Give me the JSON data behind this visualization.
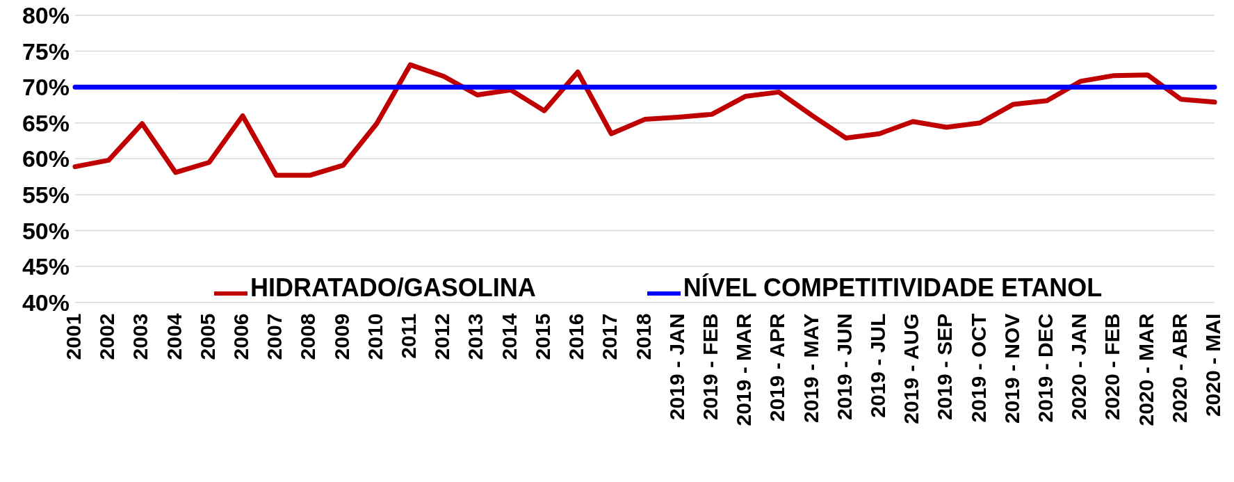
{
  "chart_data": {
    "type": "line",
    "categories": [
      "2001",
      "2002",
      "2003",
      "2004",
      "2005",
      "2006",
      "2007",
      "2008",
      "2009",
      "2010",
      "2011",
      "2012",
      "2013",
      "2014",
      "2015",
      "2016",
      "2017",
      "2018",
      "2019 - JAN",
      "2019 - FEB",
      "2019 - MAR",
      "2019 - APR",
      "2019 - MAY",
      "2019 - JUN",
      "2019 - JUL",
      "2019 - AUG",
      "2019 - SEP",
      "2019 - OCT",
      "2019 - NOV",
      "2019 - DEC",
      "2020 - JAN",
      "2020 - FEB",
      "2020 - MAR",
      "2020 - ABR",
      "2020 - MAI"
    ],
    "series": [
      {
        "name": "HIDRATADO/GASOLINA",
        "color": "#c00000",
        "values": [
          58.9,
          59.8,
          64.9,
          58.1,
          59.5,
          66.0,
          57.7,
          57.7,
          59.1,
          64.9,
          73.1,
          71.5,
          68.9,
          69.6,
          66.7,
          72.1,
          63.5,
          65.5,
          65.8,
          66.2,
          68.7,
          69.3,
          66.0,
          62.9,
          63.5,
          65.2,
          64.4,
          65.0,
          67.6,
          68.1,
          70.8,
          71.6,
          71.7,
          68.3,
          67.9
        ]
      },
      {
        "name": "NÍVEL COMPETITIVIDADE ETANOL",
        "color": "#0000ff",
        "values": [
          70,
          70,
          70,
          70,
          70,
          70,
          70,
          70,
          70,
          70,
          70,
          70,
          70,
          70,
          70,
          70,
          70,
          70,
          70,
          70,
          70,
          70,
          70,
          70,
          70,
          70,
          70,
          70,
          70,
          70,
          70,
          70,
          70,
          70,
          70
        ]
      }
    ],
    "ylim": [
      40,
      80
    ],
    "yticks": [
      {
        "value": 40,
        "label": "40%"
      },
      {
        "value": 45,
        "label": "45%"
      },
      {
        "value": 50,
        "label": "50%"
      },
      {
        "value": 55,
        "label": "55%"
      },
      {
        "value": 60,
        "label": "60%"
      },
      {
        "value": 65,
        "label": "65%"
      },
      {
        "value": 70,
        "label": "70%"
      },
      {
        "value": 75,
        "label": "75%"
      },
      {
        "value": 80,
        "label": "80%"
      }
    ],
    "grid": "y",
    "legend": "bottom",
    "marker": "none",
    "line_style": "solid"
  }
}
